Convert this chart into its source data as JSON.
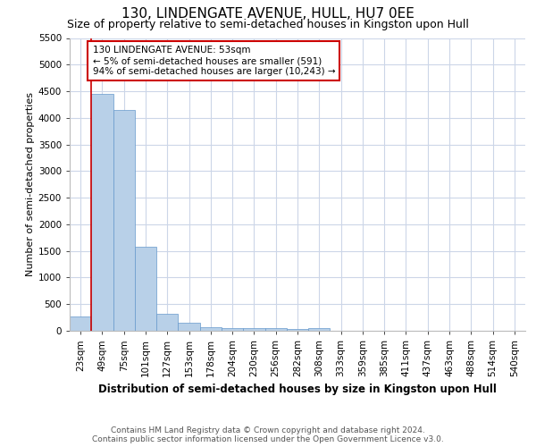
{
  "title": "130, LINDENGATE AVENUE, HULL, HU7 0EE",
  "subtitle": "Size of property relative to semi-detached houses in Kingston upon Hull",
  "xlabel": "Distribution of semi-detached houses by size in Kingston upon Hull",
  "ylabel": "Number of semi-detached properties",
  "footer_line1": "Contains HM Land Registry data © Crown copyright and database right 2024.",
  "footer_line2": "Contains public sector information licensed under the Open Government Licence v3.0.",
  "annotation_line1": "130 LINDENGATE AVENUE: 53sqm",
  "annotation_line2": "← 5% of semi-detached houses are smaller (591)",
  "annotation_line3": "94% of semi-detached houses are larger (10,243) →",
  "bar_color": "#b8d0e8",
  "bar_edge_color": "#6699cc",
  "red_line_color": "#cc0000",
  "annotation_box_color": "#cc0000",
  "ylim": [
    0,
    5500
  ],
  "yticks": [
    0,
    500,
    1000,
    1500,
    2000,
    2500,
    3000,
    3500,
    4000,
    4500,
    5000,
    5500
  ],
  "bin_labels": [
    "23sqm",
    "49sqm",
    "75sqm",
    "101sqm",
    "127sqm",
    "153sqm",
    "178sqm",
    "204sqm",
    "230sqm",
    "256sqm",
    "282sqm",
    "308sqm",
    "333sqm",
    "359sqm",
    "385sqm",
    "411sqm",
    "437sqm",
    "463sqm",
    "488sqm",
    "514sqm",
    "540sqm"
  ],
  "bar_heights": [
    275,
    4450,
    4150,
    1580,
    325,
    145,
    75,
    55,
    55,
    55,
    40,
    55,
    0,
    0,
    0,
    0,
    0,
    0,
    0,
    0,
    0
  ],
  "grid_color": "#ccd6e8",
  "background_color": "#ffffff",
  "title_fontsize": 11,
  "subtitle_fontsize": 9,
  "axis_label_fontsize": 8.5,
  "ylabel_fontsize": 8,
  "tick_fontsize": 7.5,
  "footer_fontsize": 6.5
}
